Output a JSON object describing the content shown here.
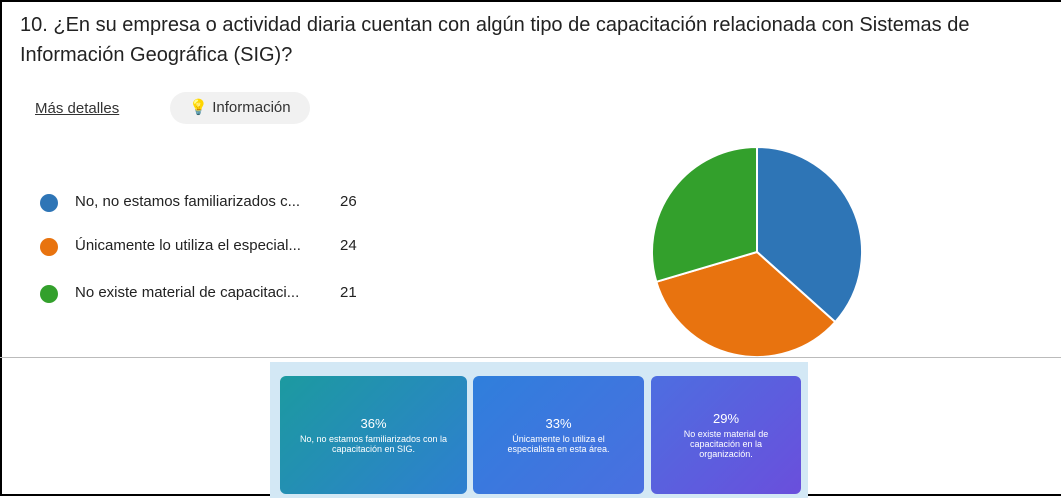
{
  "header": {
    "question_line1": "10. ¿En su empresa o actividad diaria cuentan con algún tipo de capacitación relacionada con Sistemas de",
    "question_line2": "Información Geográfica (SIG)?",
    "more_details": "Más detalles",
    "info": "Información"
  },
  "chart_data": {
    "type": "pie",
    "categories": [
      "No, no estamos familiarizados c...",
      "Únicamente lo utiliza el especial...",
      "No existe material de capacitaci..."
    ],
    "values": [
      26,
      24,
      21
    ],
    "colors": [
      "#2e75b6",
      "#e8730f",
      "#33a02c"
    ]
  },
  "cards": [
    {
      "percent": "36%",
      "text": "No, no estamos familiarizados con la capacitación en SIG."
    },
    {
      "percent": "33%",
      "text": "Únicamente lo utiliza el especialista en esta área."
    },
    {
      "percent": "29%",
      "text": "No existe material de capacitación en la organización."
    }
  ]
}
